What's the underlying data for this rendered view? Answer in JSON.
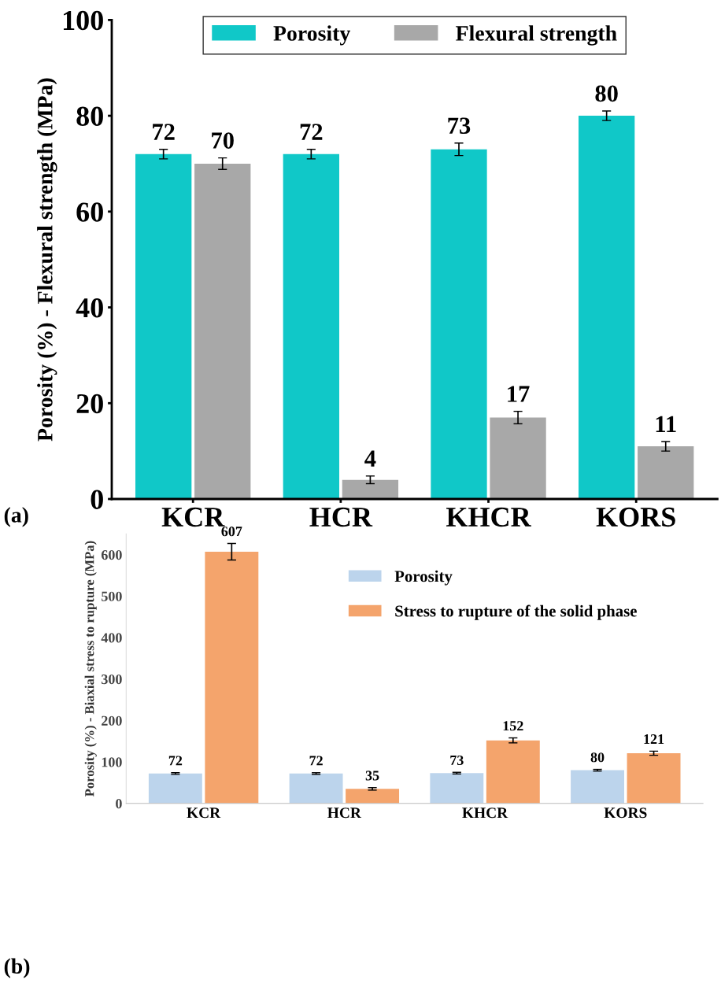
{
  "chart_data": [
    {
      "type": "bar",
      "ylabel": "Porosity (%) - Flexural strength (MPa)",
      "categories": [
        "KCR",
        "HCR",
        "KHCR",
        "KORS"
      ],
      "ylim": [
        0,
        100
      ],
      "yticks": [
        0,
        20,
        40,
        60,
        80,
        100
      ],
      "grid": false,
      "legend": "top",
      "annotations": [
        "(a)"
      ],
      "series": [
        {
          "name": "Porosity",
          "color": "#10c8c8",
          "values": [
            72,
            72,
            73,
            80
          ],
          "errors": [
            1,
            1,
            1.3,
            1
          ],
          "value_labels": [
            "72",
            "72",
            "73",
            "80"
          ]
        },
        {
          "name": "Flexural strength",
          "color": "#a8a8a8",
          "values": [
            70,
            4,
            17,
            11
          ],
          "errors": [
            1.2,
            0.8,
            1.3,
            1
          ],
          "value_labels": [
            "70",
            "4",
            "17",
            "11"
          ]
        }
      ]
    },
    {
      "type": "bar",
      "ylabel": "Porosity (%) - Biaxial stress to rupture (MPa)",
      "categories": [
        "KCR",
        "HCR",
        "KHCR",
        "KORS"
      ],
      "ylim": [
        0,
        650
      ],
      "yticks": [
        0,
        100,
        200,
        300,
        400,
        500,
        600
      ],
      "grid": false,
      "legend": "top",
      "annotations": [
        "(b)"
      ],
      "series": [
        {
          "name": "Porosity",
          "color": "#bcd4ec",
          "values": [
            72,
            72,
            73,
            80
          ],
          "errors": [
            2,
            2,
            2,
            2
          ],
          "value_labels": [
            "72",
            "72",
            "73",
            "80"
          ]
        },
        {
          "name": "Stress to rupture of the solid phase",
          "color": "#f4a46c",
          "values": [
            607,
            35,
            152,
            121
          ],
          "errors": [
            20,
            3,
            6,
            5
          ],
          "value_labels": [
            "607",
            "35",
            "152",
            "121"
          ]
        }
      ]
    }
  ]
}
